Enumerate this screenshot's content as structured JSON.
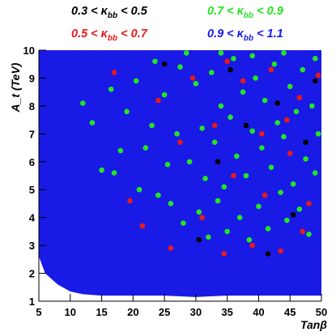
{
  "chart_data": {
    "type": "scatter",
    "title": "",
    "xlabel": "Tanβ",
    "ylabel": "A_t (TeV)",
    "xlim": [
      5,
      50
    ],
    "ylim": [
      1,
      10
    ],
    "x_ticks": [
      5,
      10,
      15,
      20,
      25,
      30,
      35,
      40,
      45,
      50
    ],
    "y_ticks": [
      1,
      2,
      3,
      4,
      5,
      6,
      7,
      8,
      9,
      10
    ],
    "grid": false,
    "legend_position": "top",
    "series": [
      {
        "name_prefix": "0.9 < κ",
        "name_sub": "bb",
        "name_suffix": " < 1.1",
        "color": "#1a1ae6",
        "lower_boundary": [
          [
            5,
            2.6
          ],
          [
            6,
            2.0
          ],
          [
            8,
            1.6
          ],
          [
            10,
            1.35
          ],
          [
            12,
            1.25
          ],
          [
            15,
            1.2
          ],
          [
            20,
            1.2
          ],
          [
            25,
            1.2
          ],
          [
            30,
            1.15
          ],
          [
            35,
            1.2
          ],
          [
            40,
            1.2
          ],
          [
            45,
            1.2
          ],
          [
            50,
            1.2
          ]
        ],
        "upper_bound": 10
      },
      {
        "name_prefix": "0.7 < κ",
        "name_sub": "bb",
        "name_suffix": " < 0.9",
        "color": "#22e622",
        "points": [
          [
            12.0,
            8.1
          ],
          [
            13.5,
            7.4
          ],
          [
            15.0,
            5.7
          ],
          [
            16.5,
            8.6
          ],
          [
            17.0,
            5.6
          ],
          [
            18.0,
            6.4
          ],
          [
            19.0,
            7.8
          ],
          [
            20.5,
            8.9
          ],
          [
            21.0,
            5.0
          ],
          [
            22.0,
            6.5
          ],
          [
            23.0,
            7.3
          ],
          [
            24.0,
            4.8
          ],
          [
            25.0,
            8.4
          ],
          [
            25.5,
            5.9
          ],
          [
            26.0,
            4.5
          ],
          [
            27.0,
            7.0
          ],
          [
            27.5,
            9.4
          ],
          [
            28.0,
            3.8
          ],
          [
            29.0,
            6.0
          ],
          [
            30.0,
            8.8
          ],
          [
            30.5,
            4.2
          ],
          [
            31.0,
            7.2
          ],
          [
            31.5,
            5.4
          ],
          [
            32.0,
            3.3
          ],
          [
            32.5,
            9.2
          ],
          [
            33.0,
            6.7
          ],
          [
            33.5,
            4.6
          ],
          [
            34.0,
            8.0
          ],
          [
            34.5,
            5.1
          ],
          [
            35.0,
            3.5
          ],
          [
            35.5,
            7.6
          ],
          [
            36.0,
            9.7
          ],
          [
            36.5,
            6.2
          ],
          [
            37.0,
            4.0
          ],
          [
            37.5,
            8.5
          ],
          [
            38.0,
            5.5
          ],
          [
            38.5,
            3.2
          ],
          [
            39.0,
            7.1
          ],
          [
            39.5,
            9.0
          ],
          [
            40.0,
            4.4
          ],
          [
            40.5,
            6.5
          ],
          [
            41.0,
            8.2
          ],
          [
            41.5,
            3.6
          ],
          [
            42.0,
            5.8
          ],
          [
            42.5,
            9.5
          ],
          [
            43.0,
            7.4
          ],
          [
            43.5,
            4.9
          ],
          [
            44.0,
            6.9
          ],
          [
            44.5,
            3.9
          ],
          [
            45.0,
            8.7
          ],
          [
            45.5,
            5.2
          ],
          [
            46.0,
            7.8
          ],
          [
            46.5,
            4.3
          ],
          [
            47.0,
            9.3
          ],
          [
            47.5,
            6.1
          ],
          [
            48.0,
            3.4
          ],
          [
            48.5,
            8.0
          ],
          [
            49.0,
            5.6
          ],
          [
            49.5,
            7.0
          ],
          [
            23.5,
            9.6
          ],
          [
            28.5,
            9.9
          ],
          [
            34.0,
            9.9
          ],
          [
            39.0,
            9.8
          ],
          [
            44.0,
            9.9
          ],
          [
            49.0,
            9.7
          ]
        ]
      },
      {
        "name_prefix": "0.5 < κ",
        "name_sub": "bb",
        "name_suffix": " < 0.7",
        "color": "#e61a1a",
        "points": [
          [
            17.0,
            9.2
          ],
          [
            19.5,
            4.6
          ],
          [
            21.5,
            3.7
          ],
          [
            24.0,
            8.2
          ],
          [
            26.0,
            2.9
          ],
          [
            27.5,
            6.7
          ],
          [
            29.5,
            9.0
          ],
          [
            31.0,
            4.0
          ],
          [
            33.0,
            7.3
          ],
          [
            34.5,
            2.7
          ],
          [
            36.0,
            5.5
          ],
          [
            37.5,
            8.9
          ],
          [
            39.0,
            3.0
          ],
          [
            40.5,
            7.0
          ],
          [
            42.0,
            9.3
          ],
          [
            43.5,
            2.8
          ],
          [
            45.0,
            6.3
          ],
          [
            46.5,
            8.3
          ],
          [
            48.0,
            4.5
          ],
          [
            49.5,
            9.1
          ],
          [
            35.0,
            9.6
          ],
          [
            41.0,
            4.8
          ],
          [
            44.5,
            7.5
          ],
          [
            47.0,
            3.5
          ]
        ]
      },
      {
        "name_prefix": "0.3 < κ",
        "name_sub": "bb",
        "name_suffix": " < 0.5",
        "color": "#000000",
        "points": [
          [
            25.0,
            9.5
          ],
          [
            30.5,
            3.2
          ],
          [
            33.5,
            6.0
          ],
          [
            35.5,
            9.3
          ],
          [
            38.0,
            7.3
          ],
          [
            41.5,
            2.7
          ],
          [
            43.0,
            8.1
          ],
          [
            45.5,
            4.1
          ],
          [
            47.5,
            6.7
          ],
          [
            49.0,
            8.9
          ]
        ]
      }
    ]
  }
}
